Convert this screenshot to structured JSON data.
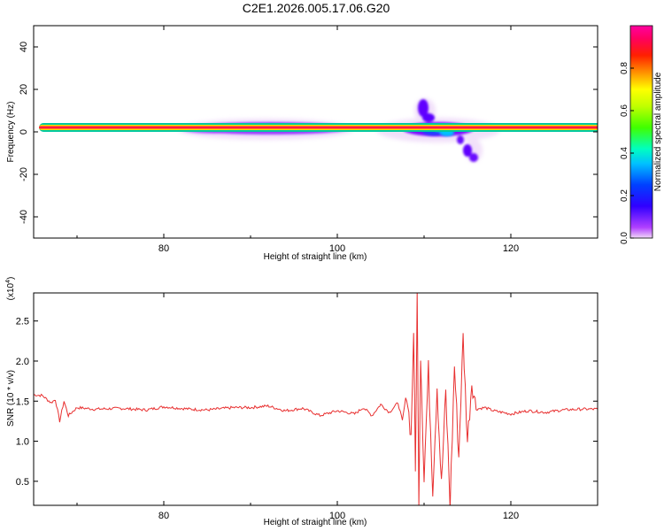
{
  "title": "C2E1.2026.005.17.06.G20",
  "spectrogram": {
    "xlabel": "Height of straight line (km)",
    "ylabel": "Frequency (Hz)",
    "xlim": [
      65,
      130
    ],
    "ylim": [
      -50,
      50
    ],
    "xticks": [
      80,
      100,
      120
    ],
    "yticks": [
      -40,
      -20,
      0,
      20,
      40
    ],
    "colorbar": {
      "label": "Normalized spectral amplitude",
      "range": [
        0,
        1
      ],
      "ticks": [
        "0.0",
        "0.2",
        "0.4",
        "0.6",
        "0.8"
      ]
    }
  },
  "chart_data": [
    {
      "type": "heatmap",
      "xlabel": "Height of straight line (km)",
      "ylabel": "Frequency (Hz)",
      "xlim": [
        65,
        130
      ],
      "ylim": [
        -50,
        50
      ],
      "colorscale": "rainbow",
      "features": [
        {
          "x_range": [
            65.5,
            130
          ],
          "y_center": 1.5,
          "amplitude": 1.0
        },
        {
          "x_range": [
            82,
            102
          ],
          "y_center": 2,
          "amplitude": 0.35
        },
        {
          "x_range": [
            107,
            118
          ],
          "y_center": 0,
          "amplitude": 0.25
        },
        {
          "x_center": 109.5,
          "y_center": 10,
          "amplitude": 0.15
        },
        {
          "x_center": 115.5,
          "y_center": -12,
          "amplitude": 0.12
        }
      ]
    },
    {
      "type": "line",
      "xlabel": "Height of straight line (km)",
      "ylabel": "SNR (10 * v/v)",
      "yscale_label": "(x10^4)",
      "xlim": [
        65,
        130
      ],
      "ylim": [
        0.2,
        2.85
      ],
      "xticks": [
        80,
        100,
        120
      ],
      "yticks": [
        0.5,
        1.0,
        1.5,
        2.0,
        2.5
      ],
      "color": "#e83030",
      "series": [
        {
          "x": [
            65,
            66,
            67,
            67.5,
            68,
            68.5,
            69,
            70,
            72,
            75,
            78,
            80,
            83,
            85,
            88,
            90,
            92,
            94,
            96,
            98,
            100,
            102,
            103,
            104,
            105,
            106,
            107,
            107.5,
            108,
            108.5,
            108.8,
            109,
            109.2,
            109.4,
            109.6,
            110,
            110.5,
            111,
            111.5,
            112,
            112.5,
            113,
            113.5,
            114,
            114.5,
            115,
            115.5,
            116,
            117,
            118,
            120,
            122,
            124,
            126,
            128,
            130
          ],
          "y": [
            1.58,
            1.57,
            1.48,
            1.52,
            1.25,
            1.5,
            1.32,
            1.42,
            1.4,
            1.41,
            1.39,
            1.43,
            1.4,
            1.39,
            1.42,
            1.42,
            1.44,
            1.38,
            1.41,
            1.32,
            1.38,
            1.34,
            1.42,
            1.32,
            1.46,
            1.36,
            1.48,
            1.25,
            1.62,
            1.05,
            2.4,
            0.6,
            2.85,
            0.3,
            2.1,
            0.55,
            1.9,
            0.4,
            1.7,
            0.45,
            1.6,
            0.2,
            1.95,
            0.8,
            2.3,
            1.0,
            1.75,
            1.4,
            1.42,
            1.38,
            1.34,
            1.38,
            1.36,
            1.39,
            1.4,
            1.4
          ]
        }
      ]
    }
  ],
  "snr": {
    "xlabel": "Height of straight line (km)",
    "ylabel": "SNR (10 * v/v)",
    "yscale_label": "(x10^4)",
    "yticks": [
      "0.5",
      "1.0",
      "1.5",
      "2.0",
      "2.5"
    ]
  }
}
